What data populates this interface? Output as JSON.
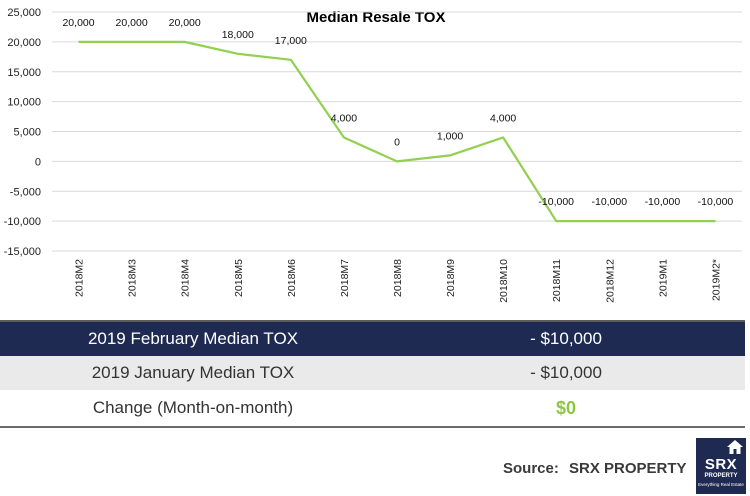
{
  "chart_data": {
    "type": "line",
    "title": "Median Resale TOX",
    "categories": [
      "2018M2",
      "2018M3",
      "2018M4",
      "2018M5",
      "2018M6",
      "2018M7",
      "2018M8",
      "2018M9",
      "2018M10",
      "2018M11",
      "2018M12",
      "2019M1",
      "2019M2*"
    ],
    "values": [
      20000,
      20000,
      20000,
      18000,
      17000,
      4000,
      0,
      1000,
      4000,
      -10000,
      -10000,
      -10000,
      -10000
    ],
    "data_labels": [
      "20,000",
      "20,000",
      "20,000",
      "18,000",
      "17,000",
      "4,000",
      "0",
      "1,000",
      "4,000",
      "-10,000",
      "-10,000",
      "-10,000",
      "-10,000"
    ],
    "ylim": [
      -15000,
      25000
    ],
    "yticks": [
      "25,000",
      "20,000",
      "15,000",
      "10,000",
      "5,000",
      "0",
      "-5,000",
      "-10,000",
      "-15,000"
    ],
    "grid": true,
    "line_color": "#92d050"
  },
  "summary": {
    "rows": [
      {
        "label": "2019 February Median TOX",
        "value": "- $10,000"
      },
      {
        "label": "2019 January Median TOX",
        "value": "- $10,000"
      },
      {
        "label": "Change (Month-on-month)",
        "value": "$0"
      }
    ]
  },
  "footer": {
    "source_label": "Source:",
    "source_name": "SRX PROPERTY",
    "logo_main": "SRX",
    "logo_sub": "PROPERTY",
    "logo_tag": "Everything Real Estate"
  },
  "colors": {
    "header_row": "#1f2a52",
    "alt_row": "#eaeaea",
    "change_value": "#8dc63f"
  }
}
